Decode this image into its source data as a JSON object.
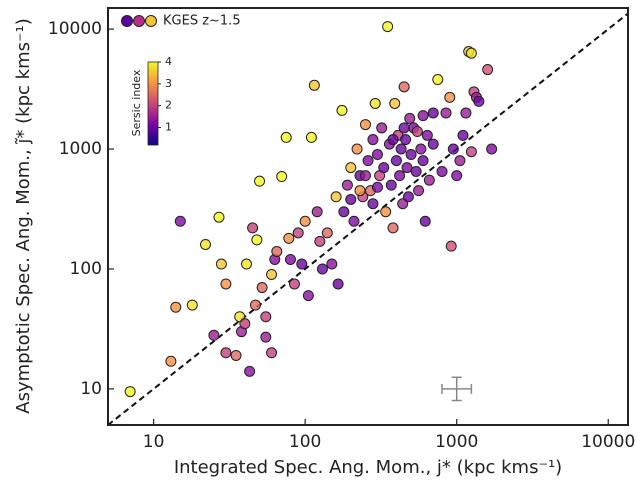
{
  "chart_data": {
    "type": "scatter",
    "log_x": true,
    "log_y": true,
    "x_label": "Integrated Spec. Ang. Mom., j* (kpc kms⁻¹)",
    "y_label": "Asymptotic Spec. Ang. Mom., j̃* (kpc kms⁻¹)",
    "xlim": [
      5,
      13500
    ],
    "ylim": [
      5,
      15000
    ],
    "xticks": [
      10,
      100,
      1000,
      10000
    ],
    "yticks": [
      10,
      100,
      1000,
      10000
    ],
    "one_to_one_line": true,
    "colormap": "plasma",
    "colorbar": {
      "label": "Sersic index",
      "clim": [
        0.2,
        4
      ],
      "ticks": [
        1,
        2,
        3,
        4
      ]
    },
    "error_bar": {
      "x": 1000,
      "y": 10,
      "x_range": [
        800,
        1250
      ],
      "y_range": [
        8,
        12.5
      ]
    },
    "series": [
      {
        "name": "KGES z~1.5",
        "x": [
          7,
          13,
          14,
          15,
          18,
          22,
          25,
          27,
          28,
          30,
          30,
          35,
          37,
          38,
          40,
          41,
          43,
          45,
          47,
          48,
          50,
          52,
          55,
          55,
          60,
          60,
          63,
          65,
          70,
          75,
          78,
          80,
          85,
          90,
          95,
          100,
          105,
          110,
          115,
          120,
          125,
          130,
          140,
          150,
          160,
          165,
          175,
          180,
          190,
          200,
          210,
          220,
          230,
          240,
          250,
          260,
          270,
          280,
          290,
          300,
          310,
          320,
          330,
          340,
          350,
          360,
          370,
          380,
          390,
          400,
          410,
          420,
          430,
          440,
          450,
          460,
          470,
          480,
          490,
          500,
          520,
          540,
          560,
          580,
          600,
          620,
          640,
          660,
          700,
          750,
          800,
          850,
          900,
          920,
          950,
          1000,
          1050,
          1100,
          1150,
          1200,
          1250,
          1300,
          1350,
          1400,
          1600,
          1700,
          1250,
          700,
          600,
          550,
          450,
          380,
          280,
          250,
          230,
          200,
          300
        ],
        "values": [
          9.5,
          17,
          48,
          250,
          50,
          160,
          28,
          270,
          110,
          20,
          75,
          19,
          40,
          30,
          35,
          110,
          14,
          220,
          50,
          175,
          540,
          70,
          40,
          27,
          20,
          90,
          120,
          140,
          590,
          1250,
          180,
          120,
          75,
          200,
          110,
          250,
          60,
          1250,
          3400,
          300,
          170,
          100,
          200,
          110,
          400,
          75,
          2100,
          300,
          500,
          700,
          250,
          1000,
          600,
          400,
          1600,
          800,
          450,
          350,
          2400,
          900,
          600,
          1500,
          700,
          300,
          10500,
          1100,
          500,
          220,
          2400,
          800,
          1300,
          600,
          1000,
          350,
          3300,
          1200,
          700,
          400,
          1800,
          900,
          1500,
          650,
          450,
          1000,
          800,
          250,
          1300,
          550,
          1100,
          3800,
          650,
          2000,
          2700,
          155,
          1000,
          600,
          800,
          1300,
          2000,
          6500,
          6300,
          3000,
          2700,
          2500,
          4600,
          1000,
          950,
          2000,
          1900,
          1400,
          1500,
          1200,
          1200,
          600,
          450,
          380,
          480
        ],
        "c": [
          4,
          3,
          3,
          1.2,
          3.8,
          3.8,
          1.5,
          4,
          3.5,
          2,
          3,
          2.5,
          3.8,
          1.5,
          2,
          3.8,
          1.3,
          2,
          2.5,
          4,
          4,
          2.5,
          2,
          1.5,
          2,
          3.5,
          1.3,
          2.5,
          4,
          4,
          3,
          1.2,
          2,
          2,
          1,
          3,
          1.3,
          4,
          3.5,
          1.5,
          2,
          1,
          2.5,
          1.3,
          3.5,
          1,
          4,
          1,
          1.5,
          3.5,
          1.2,
          3,
          1,
          2,
          3,
          1.2,
          2.5,
          1,
          3.8,
          1.2,
          2,
          1.5,
          1,
          3,
          4,
          1.3,
          1,
          2.5,
          3.5,
          1,
          2,
          1.2,
          1,
          1.5,
          2.5,
          1,
          1.2,
          1,
          1.5,
          1,
          1.2,
          1,
          1.5,
          1.3,
          1,
          1,
          1.2,
          1.5,
          1,
          4,
          1.2,
          1.5,
          3,
          2.2,
          1,
          1.2,
          1.5,
          1,
          1.5,
          3.5,
          3.8,
          2,
          1.5,
          1,
          2.2,
          1.2,
          2,
          1,
          1.3,
          2,
          1,
          1,
          1.3,
          1.5,
          3,
          1,
          1.2
        ]
      }
    ]
  }
}
